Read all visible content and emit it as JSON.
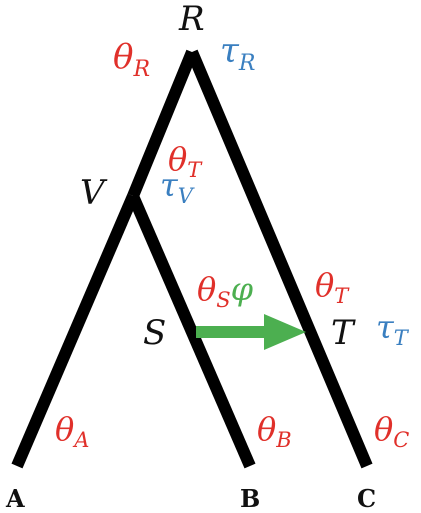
{
  "colors": {
    "branch": "#000000",
    "theta": "#e0302a",
    "tau": "#3a7fc0",
    "migration_arrow": "#4caf50",
    "label": "#111111"
  },
  "nodes": {
    "root": "R",
    "internal_v": "V",
    "source_s": "S",
    "target_t": "T"
  },
  "tips": {
    "a": "A",
    "b": "B",
    "c": "C"
  },
  "params": {
    "theta_symbol": "θ",
    "tau_symbol": "τ",
    "phi_symbol": "φ",
    "theta_r_sub": "R",
    "tau_r_sub": "R",
    "theta_t_upper_sub": "T",
    "tau_v_sub": "V",
    "theta_s_sub": "S",
    "theta_t_lower_sub": "T",
    "tau_t_sub": "T",
    "theta_a_sub": "A",
    "theta_b_sub": "B",
    "theta_c_sub": "C"
  }
}
